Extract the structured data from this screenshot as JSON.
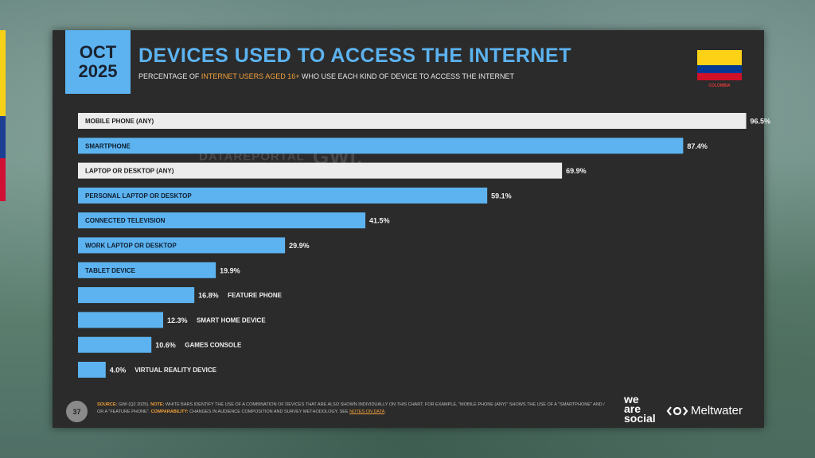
{
  "side_flag_colors": [
    "#f7d117",
    "#1c3f94",
    "#d21034"
  ],
  "slide": {
    "date_month": "OCT",
    "date_year": "2025",
    "title": "DEVICES USED TO ACCESS THE INTERNET",
    "subtitle_pre": "PERCENTAGE OF ",
    "subtitle_highlight": "INTERNET USERS AGED 16+",
    "subtitle_post": " WHO USE EACH KIND OF DEVICE TO ACCESS THE INTERNET",
    "country": "COLOMBIA",
    "flag_colors": [
      "#fcd116",
      "#003893",
      "#ce1126"
    ],
    "watermark_left": "DATAREPORTAL",
    "watermark_right": "GWI.",
    "page_number": "37",
    "footnote": {
      "source_label": "SOURCE:",
      "source_text": " GWI (Q2 2025). ",
      "note_label": "NOTE:",
      "note_text": " WHITE BARS IDENTIFY THE USE OF A COMBINATION OF DEVICES THAT ARE ALSO SHOWN INDIVIDUALLY ON THIS CHART. FOR EXAMPLE, \"MOBILE PHONE (ANY)\" SHOWS THE USE OF A \"SMARTPHONE\" AND / OR A \"FEATURE PHONE\". ",
      "comparability_label": "COMPARABILITY:",
      "comparability_text": " CHANGES IN AUDIENCE COMPOSITION AND SURVEY METHODOLOGY. SEE ",
      "link_text": "NOTES ON DATA",
      "end_text": "."
    },
    "brand_was_1": "we",
    "brand_was_2": "are",
    "brand_was_3": "social",
    "brand_meltwater": "Meltwater"
  },
  "colors": {
    "background": "#2b2b2b",
    "accent_blue": "#5cb3f0",
    "white_bar": "#ececec",
    "orange": "#f2a03a"
  },
  "chart_data": {
    "type": "bar",
    "orientation": "horizontal",
    "xlim": [
      0,
      100
    ],
    "unit": "%",
    "categories": [
      "MOBILE PHONE (ANY)",
      "SMARTPHONE",
      "LAPTOP OR DESKTOP (ANY)",
      "PERSONAL LAPTOP OR DESKTOP",
      "CONNECTED TELEVISION",
      "WORK LAPTOP OR DESKTOP",
      "TABLET DEVICE",
      "FEATURE PHONE",
      "SMART HOME DEVICE",
      "GAMES CONSOLE",
      "VIRTUAL REALITY DEVICE"
    ],
    "values": [
      96.5,
      87.4,
      69.9,
      59.1,
      41.5,
      29.9,
      19.9,
      16.8,
      12.3,
      10.6,
      4.0
    ],
    "value_labels": [
      "96.5%",
      "87.4%",
      "69.9%",
      "59.1%",
      "41.5%",
      "29.9%",
      "19.9%",
      "16.8%",
      "12.3%",
      "10.6%",
      "4.0%"
    ],
    "combination_bar": [
      true,
      false,
      true,
      false,
      false,
      false,
      false,
      false,
      false,
      false,
      false
    ]
  }
}
